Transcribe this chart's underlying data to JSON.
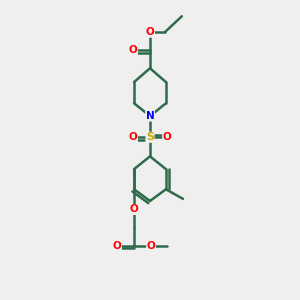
{
  "background_color": "#efefef",
  "bond_color": "#2d6b4a",
  "bond_width": 1.8,
  "atom_colors": {
    "O": "#ff0000",
    "N": "#0000ff",
    "S": "#ccaa00",
    "C": "#2d6b4a",
    "H": "#2d6b4a"
  },
  "figsize": [
    3.0,
    3.0
  ],
  "dpi": 100
}
